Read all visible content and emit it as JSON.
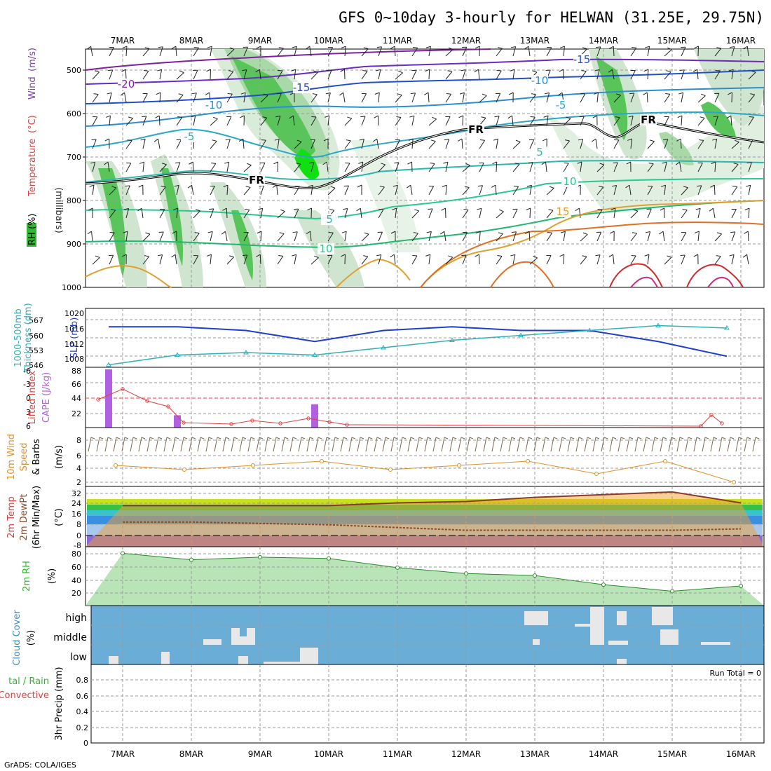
{
  "title": "GFS 0~10day 3-hourly for HELWAN (31.25E, 29.75N)",
  "credit": "GrADS: COLA/IGES",
  "dates": [
    "7MAR",
    "8MAR",
    "9MAR",
    "10MAR",
    "11MAR",
    "12MAR",
    "13MAR",
    "14MAR",
    "15MAR",
    "16MAR"
  ],
  "colors": {
    "rh": "#2fb82f",
    "temperature": "#e04040",
    "wind": "#7a3fb0",
    "millibars": "#303030",
    "slp": "#1f3fc8",
    "thickness": "#30b0b8",
    "lifted": "#e04040",
    "cape": "#b060e0",
    "wind10": "#e0902a",
    "rh2m": "#2fb82f",
    "cloud": "#3c8fc8",
    "cloudbg": "#6aaed8",
    "precip_total": "#2fb82f",
    "precip_conv": "#e04040"
  },
  "panels": {
    "upper": {
      "ylabels": [
        "Wind (m/s)",
        "Temperature (°C)",
        "RH (%)",
        "(millibars)"
      ],
      "ylabel_parts": {
        "wind": "Wind",
        "wind_unit": "(m/s)",
        "temp": "Temperature",
        "temp_unit": "(°C)",
        "rh": "RH (%)",
        "mb": "(millibars)"
      },
      "yticks": [
        "500",
        "600",
        "700",
        "800",
        "900",
        "1000"
      ],
      "contour_labels": [
        {
          "text": "-20",
          "color": "#8020a0"
        },
        {
          "text": "-15",
          "color": "#2050c8"
        },
        {
          "text": "-15",
          "color": "#2050c8"
        },
        {
          "text": "-10",
          "color": "#2a8fd0"
        },
        {
          "text": "-10",
          "color": "#2a8fd0"
        },
        {
          "text": "-5",
          "color": "#2aa8c8"
        },
        {
          "text": "-5",
          "color": "#2aa8c8"
        },
        {
          "text": "5",
          "color": "#2ab8b0"
        },
        {
          "text": "5",
          "color": "#2ab8b0"
        },
        {
          "text": "10",
          "color": "#2ac890"
        },
        {
          "text": "10",
          "color": "#2ac890"
        },
        {
          "text": "15",
          "color": "#e0a030"
        },
        {
          "text": "FR",
          "color": "#000000"
        },
        {
          "text": "FR",
          "color": "#000000"
        },
        {
          "text": "FR",
          "color": "#000000"
        }
      ]
    },
    "slp": {
      "ylabel_left": "1000-500mb Thickness (dm)",
      "ylabel_left_parts": [
        "1000-500mb",
        "Thickness (dm)"
      ],
      "ylabel_right": "SLP (mb)",
      "thickness_ticks": [
        "567",
        "560",
        "553",
        "546"
      ],
      "slp_ticks": [
        "1020",
        "1016",
        "1012",
        "1008"
      ]
    },
    "cape": {
      "ylabel_left": "Lifted Index",
      "ylabel_right": "CAPE (J/kg)",
      "li_ticks": [
        "-6",
        "-3",
        "0",
        "3",
        "6"
      ],
      "cape_ticks": [
        "88",
        "66",
        "44",
        "22"
      ]
    },
    "wind10": {
      "ylabel": "10m Wind Speed (m/s) & Barbs",
      "ylabel_parts": [
        "10m Wind",
        "Speed",
        "& Barbs"
      ],
      "yticks": [
        "8",
        "6",
        "4",
        "2"
      ],
      "unit": "(m/s)"
    },
    "temp2m": {
      "ylabel": "2m Temp 2m DewPt (6hr Min/Max)",
      "ylabel_parts": [
        "2m Temp",
        "2m DewPt",
        "(6hr Min/Max)"
      ],
      "yticks": [
        "32",
        "24",
        "16",
        "8",
        "0",
        "-8"
      ],
      "unit": "(°C)"
    },
    "rh2m": {
      "ylabel": "2m RH",
      "yticks": [
        "80",
        "60",
        "40",
        "20"
      ],
      "unit": "(%)"
    },
    "cloud": {
      "ylabel": "Cloud Cover",
      "unit": "(%)",
      "levels": [
        "high",
        "middle",
        "low"
      ]
    },
    "precip": {
      "ylabel_total": "Total / Rain",
      "ylabel_total_visible": "tal / Rain",
      "ylabel_conv": "Convective",
      "ylabel_right": "3hr Precip (mm)",
      "yticks": [
        "0.8",
        "0.6",
        "0.4",
        "0.2",
        "0"
      ],
      "run_total": "Run Total = 0"
    }
  },
  "chart_data": [
    {
      "type": "line",
      "title": "1000-500mb Thickness / SLP",
      "x": [
        "7MAR",
        "8MAR",
        "9MAR",
        "10MAR",
        "11MAR",
        "12MAR",
        "13MAR",
        "14MAR",
        "15MAR",
        "16MAR"
      ],
      "series": [
        {
          "name": "SLP (mb)",
          "values": [
            1017,
            1017,
            1016,
            1013,
            1016,
            1017,
            1016,
            1016,
            1013,
            1009
          ]
        },
        {
          "name": "1000-500mb Thickness (dm)",
          "values": [
            547,
            551,
            552,
            551,
            554,
            557,
            559,
            561,
            563,
            562
          ]
        }
      ],
      "ylim_slp": [
        1006,
        1022
      ],
      "ylim_thickness": [
        546,
        570
      ]
    },
    {
      "type": "bar",
      "title": "CAPE (J/kg)",
      "x": [
        "7MAR",
        "8MAR",
        "9MAR",
        "10MAR",
        "11MAR",
        "12MAR",
        "13MAR",
        "14MAR",
        "15MAR",
        "16MAR"
      ],
      "values": [
        85,
        18,
        0,
        34,
        0,
        0,
        0,
        0,
        0,
        0
      ],
      "ylim": [
        0,
        88
      ]
    },
    {
      "type": "line",
      "title": "10m Wind Speed (m/s)",
      "x": [
        "7MAR",
        "8MAR",
        "9MAR",
        "10MAR",
        "11MAR",
        "12MAR",
        "13MAR",
        "14MAR",
        "15MAR",
        "16MAR"
      ],
      "values": [
        4.5,
        4.0,
        4.5,
        5.0,
        4.0,
        4.5,
        5.0,
        3.5,
        5.0,
        2.5
      ],
      "ylim": [
        2,
        9
      ]
    },
    {
      "type": "area",
      "title": "2m Temp (°C)",
      "x": [
        "7MAR",
        "8MAR",
        "9MAR",
        "10MAR",
        "11MAR",
        "12MAR",
        "13MAR",
        "14MAR",
        "15MAR",
        "16MAR"
      ],
      "series": [
        {
          "name": "2m Temp",
          "values": [
            22,
            22,
            22,
            22,
            24,
            25,
            28,
            30,
            32,
            24
          ]
        },
        {
          "name": "2m DewPt",
          "values": [
            10,
            10,
            9,
            8,
            6,
            4,
            4,
            4,
            4,
            5
          ]
        }
      ],
      "ylim": [
        -8,
        36
      ]
    },
    {
      "type": "area",
      "title": "2m RH (%)",
      "x": [
        "7MAR",
        "8MAR",
        "9MAR",
        "10MAR",
        "11MAR",
        "12MAR",
        "13MAR",
        "14MAR",
        "15MAR",
        "16MAR"
      ],
      "values": [
        80,
        70,
        74,
        72,
        58,
        49,
        46,
        32,
        22,
        30
      ],
      "ylim": [
        0,
        90
      ]
    },
    {
      "type": "bar",
      "title": "3hr Precip (mm)",
      "x": [
        "7MAR",
        "8MAR",
        "9MAR",
        "10MAR",
        "11MAR",
        "12MAR",
        "13MAR",
        "14MAR",
        "15MAR",
        "16MAR"
      ],
      "values": [
        0,
        0,
        0,
        0,
        0,
        0,
        0,
        0,
        0,
        0
      ],
      "ylim": [
        0,
        1
      ]
    }
  ]
}
